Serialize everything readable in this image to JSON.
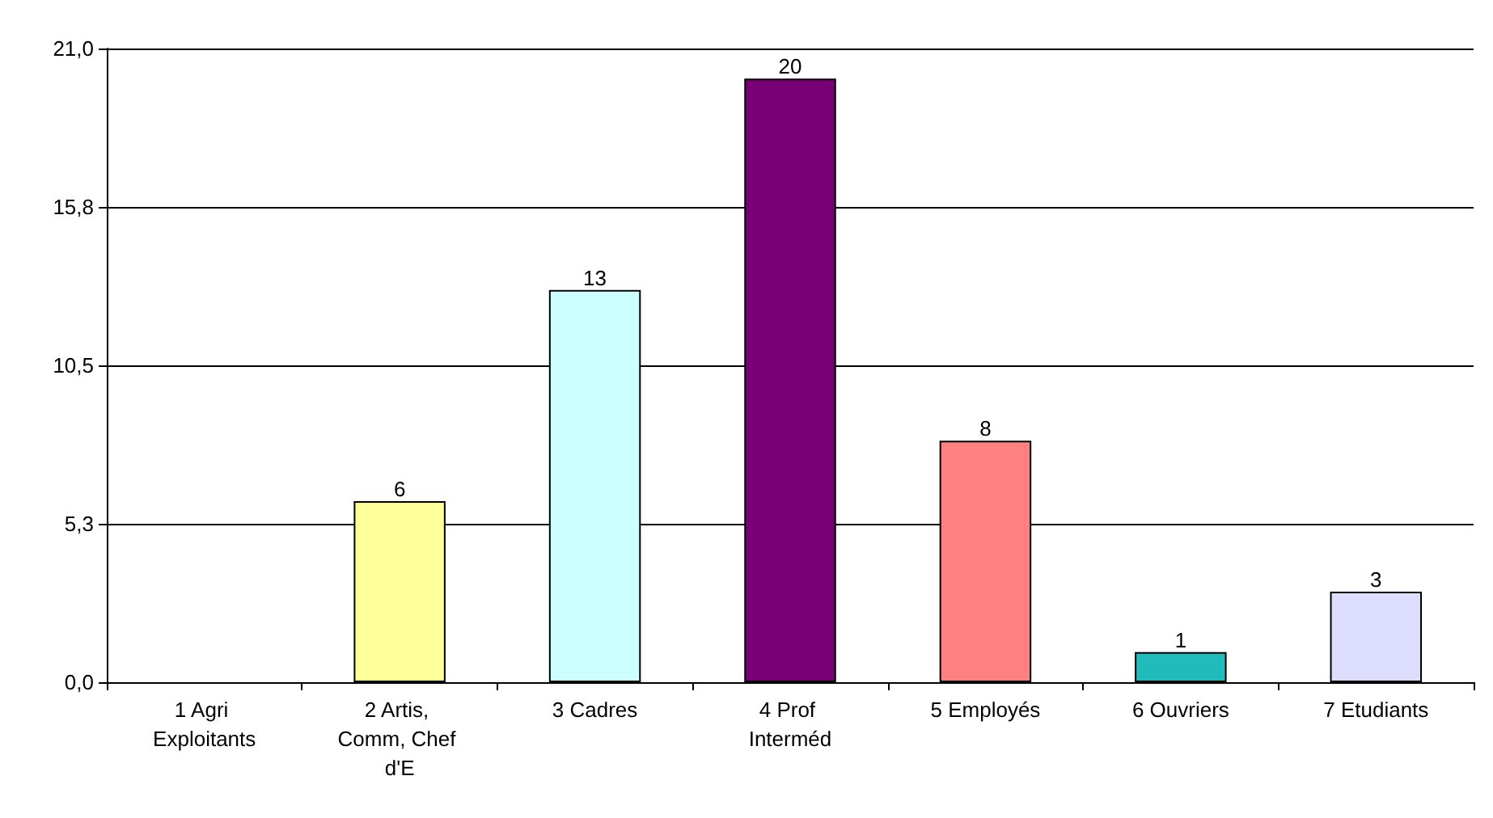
{
  "chart_data": {
    "type": "bar",
    "categories": [
      "1 Agri Exploitants",
      "2 Artis, Comm, Chef d'E",
      "3 Cadres",
      "4 Prof Interméd",
      "5 Employés",
      "6 Ouvriers",
      "7 Etudiants"
    ],
    "values": [
      0,
      6,
      13,
      20,
      8,
      1,
      3
    ],
    "value_labels": [
      null,
      "6",
      "13",
      "20",
      "8",
      "1",
      "3"
    ],
    "colors": [
      "#ffff99",
      "#ffff99",
      "#ccffff",
      "#770077",
      "#ff8080",
      "#22bbbb",
      "#ddddff"
    ],
    "ylim": [
      0,
      21
    ],
    "yticks": [
      {
        "value": 0,
        "label": "0,0"
      },
      {
        "value": 5.25,
        "label": "5,3"
      },
      {
        "value": 10.5,
        "label": "10,5"
      },
      {
        "value": 15.75,
        "label": "15,8"
      },
      {
        "value": 21,
        "label": "21,0"
      }
    ],
    "grid": "y"
  }
}
